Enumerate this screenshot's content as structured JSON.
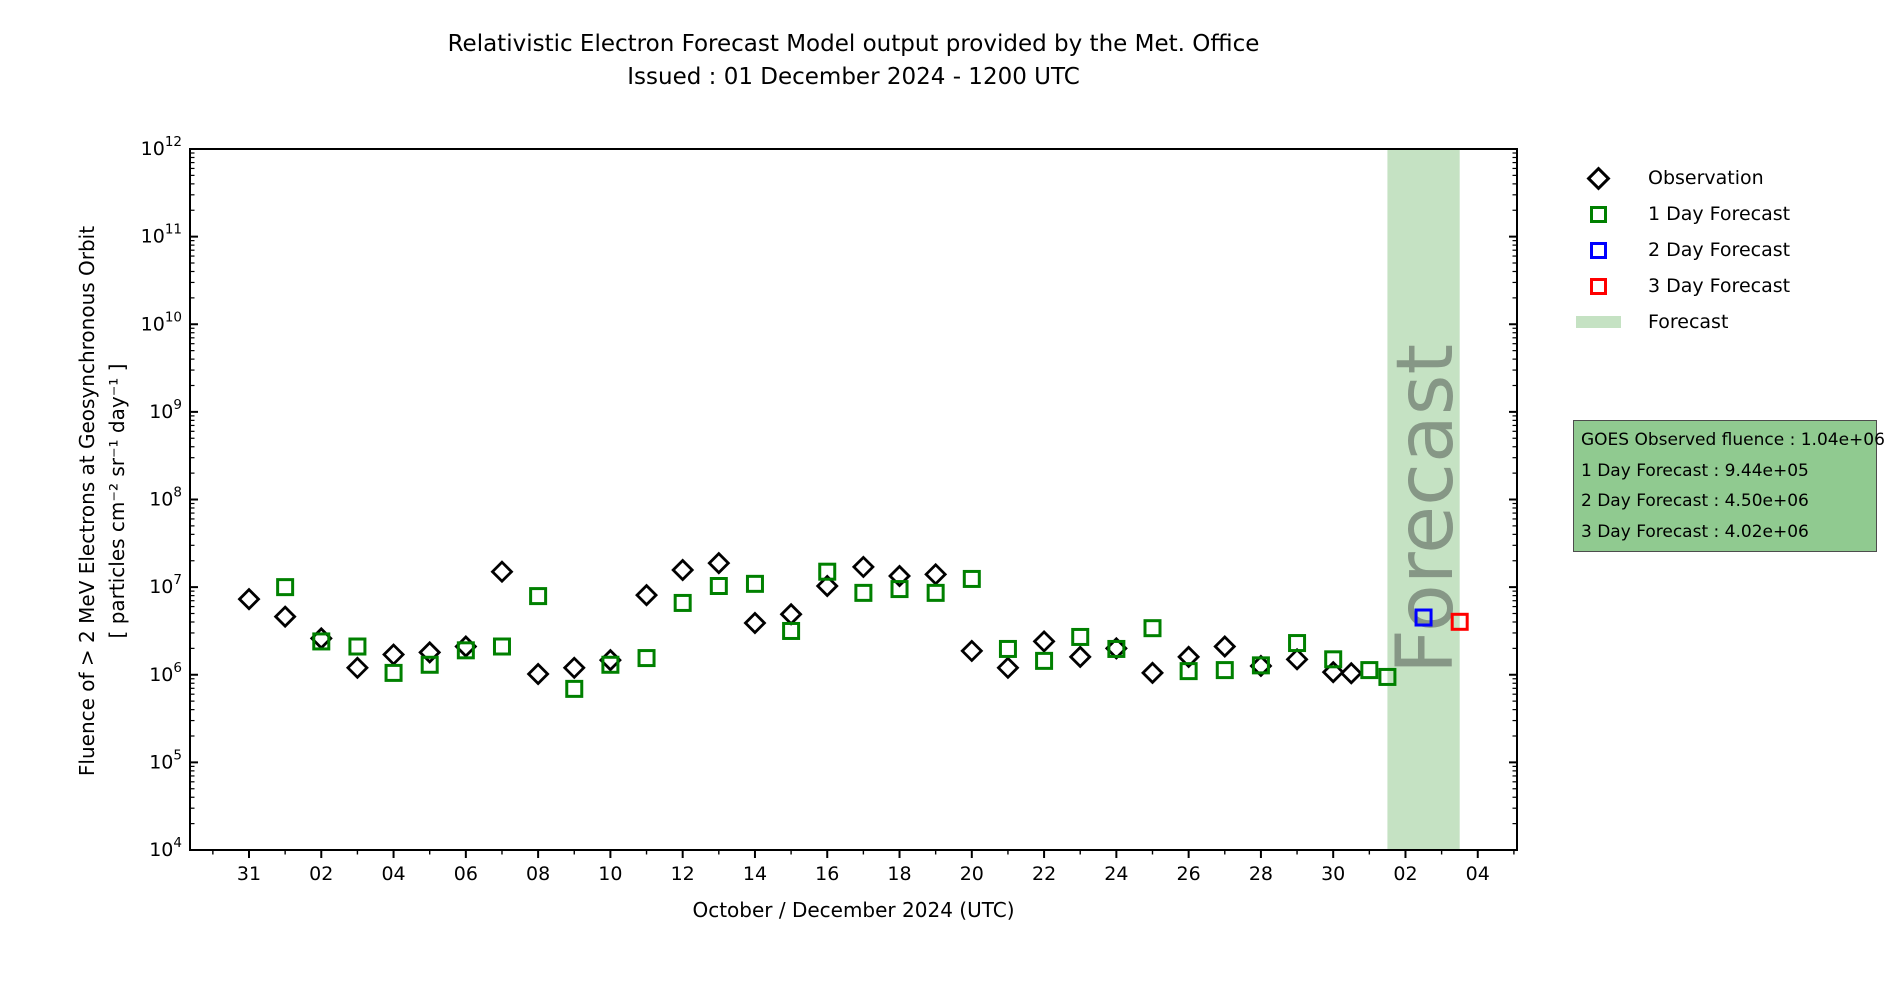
{
  "title": {
    "line1": "Relativistic Electron Forecast Model output provided by the Met. Office",
    "line2": "Issued : 01 December 2024 - 1200 UTC"
  },
  "axes": {
    "xlabel": "October / December 2024 (UTC)",
    "ylabel_line1": "Fluence of > 2 MeV Electrons at Geosynchronous Orbit",
    "ylabel_line2": "[ particles cm⁻² sr⁻¹ day⁻¹ ]",
    "y_tick_exponents": [
      12,
      11,
      10,
      9,
      8,
      7,
      6,
      5,
      4
    ],
    "x_ticks": [
      {
        "day": 0,
        "label": "31"
      },
      {
        "day": 2,
        "label": "02"
      },
      {
        "day": 4,
        "label": "04"
      },
      {
        "day": 6,
        "label": "06"
      },
      {
        "day": 8,
        "label": "08"
      },
      {
        "day": 10,
        "label": "10"
      },
      {
        "day": 12,
        "label": "12"
      },
      {
        "day": 14,
        "label": "14"
      },
      {
        "day": 16,
        "label": "16"
      },
      {
        "day": 18,
        "label": "18"
      },
      {
        "day": 20,
        "label": "20"
      },
      {
        "day": 22,
        "label": "22"
      },
      {
        "day": 24,
        "label": "24"
      },
      {
        "day": 26,
        "label": "26"
      },
      {
        "day": 28,
        "label": "28"
      },
      {
        "day": 30,
        "label": "30"
      },
      {
        "day": 32,
        "label": "02"
      },
      {
        "day": 34,
        "label": "04"
      }
    ]
  },
  "legend": {
    "items": [
      {
        "label": "Observation",
        "marker": "diamond",
        "color": "#000000"
      },
      {
        "label": "1 Day Forecast",
        "marker": "square",
        "color": "#008000"
      },
      {
        "label": "2 Day Forecast",
        "marker": "square",
        "color": "#0000ff"
      },
      {
        "label": "3 Day Forecast",
        "marker": "square",
        "color": "#ff0000"
      },
      {
        "label": "Forecast",
        "marker": "patch",
        "color": "#c5e2c3"
      }
    ]
  },
  "info_box": {
    "background": "#90ca90",
    "lines": [
      "GOES Observed fluence : 1.04e+06",
      "1 Day Forecast : 9.44e+05",
      "2 Day Forecast : 4.50e+06",
      "3 Day Forecast : 4.02e+06"
    ]
  },
  "forecast_band": {
    "watermark": "Forecast",
    "color": "#c5e2c3",
    "start_day": 31.5,
    "end_day": 33.5
  },
  "chart_data": {
    "type": "scatter",
    "title": "Relativistic Electron Forecast Model output provided by the Met. Office — Issued : 01 December 2024 - 1200 UTC",
    "xlabel": "October / December 2024 (UTC)",
    "ylabel": "Fluence of > 2 MeV Electrons at Geosynchronous Orbit [ particles cm^-2 sr^-1 day^-1 ]",
    "x_unit": "days since 2024-10-31 00:00 UTC",
    "yscale": "log",
    "ylim": [
      10000.0,
      1000000000000.0
    ],
    "xlim": [
      -1.63,
      35.08
    ],
    "grid": false,
    "legend_position": "outside-right",
    "forecast_band_days": [
      31.5,
      33.5
    ],
    "series": [
      {
        "name": "Observation",
        "marker": "diamond",
        "color": "#000000",
        "points": [
          [
            0,
            7300000.0
          ],
          [
            1,
            4600000.0
          ],
          [
            2,
            2600000.0
          ],
          [
            3,
            1200000.0
          ],
          [
            4,
            1700000.0
          ],
          [
            5,
            1800000.0
          ],
          [
            6,
            2100000.0
          ],
          [
            7,
            15000000.0
          ],
          [
            8,
            1020000.0
          ],
          [
            9,
            1200000.0
          ],
          [
            10,
            1470000.0
          ],
          [
            11,
            8100000.0
          ],
          [
            12,
            15700000.0
          ],
          [
            13,
            18800000.0
          ],
          [
            14,
            3900000.0
          ],
          [
            15,
            4900000.0
          ],
          [
            16,
            10300000.0
          ],
          [
            17,
            17000000.0
          ],
          [
            18,
            13400000.0
          ],
          [
            19,
            14000000.0
          ],
          [
            20,
            1870000.0
          ],
          [
            21,
            1200000.0
          ],
          [
            22,
            2400000.0
          ],
          [
            23,
            1600000.0
          ],
          [
            24,
            2000000.0
          ],
          [
            25,
            1050000.0
          ],
          [
            26,
            1600000.0
          ],
          [
            27,
            2100000.0
          ],
          [
            28,
            1260000.0
          ],
          [
            29,
            1500000.0
          ],
          [
            30,
            1070000.0
          ],
          [
            30.5,
            1040000.0
          ]
        ]
      },
      {
        "name": "1 Day Forecast",
        "marker": "square",
        "color": "#008000",
        "points": [
          [
            1,
            10000000.0
          ],
          [
            2,
            2400000.0
          ],
          [
            3,
            2100000.0
          ],
          [
            4,
            1050000.0
          ],
          [
            5,
            1300000.0
          ],
          [
            6,
            1900000.0
          ],
          [
            7,
            2100000.0
          ],
          [
            8,
            7900000.0
          ],
          [
            9,
            690000.0
          ],
          [
            10,
            1300000.0
          ],
          [
            11,
            1550000.0
          ],
          [
            12,
            6600000.0
          ],
          [
            13,
            10300000.0
          ],
          [
            14,
            10900000.0
          ],
          [
            15,
            3160000.0
          ],
          [
            16,
            15000000.0
          ],
          [
            17,
            8600000.0
          ],
          [
            18,
            9500000.0
          ],
          [
            19,
            8600000.0
          ],
          [
            20,
            12400000.0
          ],
          [
            21,
            1970000.0
          ],
          [
            22,
            1440000.0
          ],
          [
            23,
            2700000.0
          ],
          [
            24,
            1970000.0
          ],
          [
            25,
            3400000.0
          ],
          [
            26,
            1100000.0
          ],
          [
            27,
            1130000.0
          ],
          [
            28,
            1280000.0
          ],
          [
            29,
            2300000.0
          ],
          [
            30,
            1500000.0
          ],
          [
            31,
            1130000.0
          ],
          [
            31.5,
            944000.0
          ]
        ]
      },
      {
        "name": "2 Day Forecast",
        "marker": "square",
        "color": "#0000ff",
        "points": [
          [
            32.5,
            4500000.0
          ]
        ]
      },
      {
        "name": "3 Day Forecast",
        "marker": "square",
        "color": "#ff0000",
        "points": [
          [
            33.5,
            4020000.0
          ]
        ]
      }
    ]
  }
}
